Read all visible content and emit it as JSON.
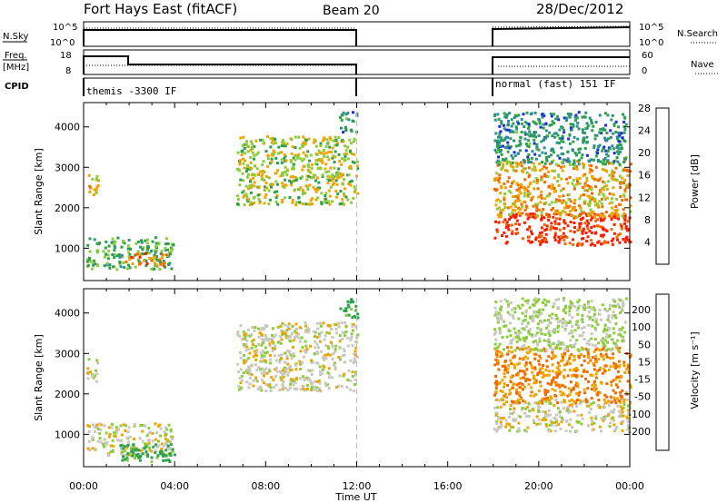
{
  "header": {
    "title": "Fort Hays East (fitACF)",
    "beam": "Beam 20",
    "date": "28/Dec/2012"
  },
  "strips": {
    "nsky_label": "N.Sky",
    "nsky_ticks": [
      "10^5",
      "10^0"
    ],
    "nsearch_label": "N.Search",
    "nsearch_ticks": [
      "10^5",
      "10^0"
    ],
    "freq_label": "Freq.",
    "freq_unit": "[MHz]",
    "freq_ticks": [
      "18",
      "8"
    ],
    "nave_label": "Nave",
    "nave_ticks": [
      "60",
      "0"
    ],
    "cpid_label": "CPID",
    "cpid_segments": [
      "themis -3300 IF",
      "normal (fast) 151 IF"
    ]
  },
  "chart_data": [
    {
      "type": "heatmap",
      "name": "power",
      "ylabel": "Slant Range [km]",
      "xlabel": "",
      "yticks": [
        1000,
        2000,
        3000,
        4000
      ],
      "ylim": [
        200,
        4600
      ],
      "xlim_hours": [
        0,
        24
      ],
      "xticks": [
        "00:00",
        "04:00",
        "08:00",
        "12:00",
        "16:00",
        "20:00",
        "00:00"
      ],
      "colorbar": {
        "label": "Power [dB]",
        "ticks": [
          "4",
          "8",
          "12",
          "16",
          "20",
          "24",
          "28"
        ],
        "colors": [
          "#1a2be0",
          "#2e8f8f",
          "#2aa04a",
          "#8ccc3a",
          "#f0a400",
          "#f06a00",
          "#ff1a00"
        ]
      },
      "echo_regions": [
        {
          "t": [
            0.1,
            0.6
          ],
          "range": [
            2300,
            2900
          ],
          "level": 18
        },
        {
          "t": [
            0.1,
            3.9
          ],
          "range": [
            500,
            1300
          ],
          "level": 12
        },
        {
          "t": [
            1.8,
            3.6
          ],
          "range": [
            600,
            900
          ],
          "level": 22
        },
        {
          "t": [
            6.7,
            12.0
          ],
          "range": [
            2100,
            3800
          ],
          "level": 16
        },
        {
          "t": [
            11.2,
            12.0
          ],
          "range": [
            3900,
            4400
          ],
          "level": 8
        },
        {
          "t": [
            18.0,
            24.0
          ],
          "range": [
            1100,
            1900
          ],
          "level": 28
        },
        {
          "t": [
            18.0,
            24.0
          ],
          "range": [
            1800,
            3200
          ],
          "level": 20
        },
        {
          "t": [
            18.0,
            23.8
          ],
          "range": [
            3100,
            4400
          ],
          "level": 8
        }
      ],
      "gap_hours": [
        12.0,
        18.0
      ]
    },
    {
      "type": "heatmap",
      "name": "velocity",
      "ylabel": "Slant Range [km]",
      "xlabel": "Time UT",
      "yticks": [
        1000,
        2000,
        3000,
        4000
      ],
      "ylim": [
        200,
        4600
      ],
      "xlim_hours": [
        0,
        24
      ],
      "xticks": [
        "00:00",
        "04:00",
        "08:00",
        "12:00",
        "16:00",
        "20:00",
        "00:00"
      ],
      "colorbar": {
        "label": "Velocity [m s⁻¹]",
        "ticks": [
          "200",
          "100",
          "50",
          "15",
          "-15",
          "-50",
          "-100",
          "-200"
        ],
        "colors": [
          "#1a2b9a",
          "#2e7f7f",
          "#2aa04a",
          "#8ccc3a",
          "#c8c8c0",
          "#f0a400",
          "#f06a00",
          "#ff1a00"
        ]
      },
      "echo_regions": [
        {
          "t": [
            0.1,
            0.6
          ],
          "range": [
            2300,
            2900
          ],
          "level": 0
        },
        {
          "t": [
            0.1,
            3.9
          ],
          "range": [
            500,
            1300
          ],
          "level": 0
        },
        {
          "t": [
            1.5,
            4.0
          ],
          "range": [
            350,
            800
          ],
          "level": 40
        },
        {
          "t": [
            6.7,
            12.0
          ],
          "range": [
            2100,
            3800
          ],
          "level": 0
        },
        {
          "t": [
            11.2,
            12.0
          ],
          "range": [
            3900,
            4400
          ],
          "level": 40
        },
        {
          "t": [
            18.0,
            24.0
          ],
          "range": [
            1100,
            1900
          ],
          "level": 0
        },
        {
          "t": [
            18.0,
            24.0
          ],
          "range": [
            1800,
            3200
          ],
          "level": -30
        },
        {
          "t": [
            18.0,
            23.8
          ],
          "range": [
            3100,
            4400
          ],
          "level": 10
        }
      ],
      "gap_hours": [
        12.0,
        18.0
      ]
    }
  ]
}
